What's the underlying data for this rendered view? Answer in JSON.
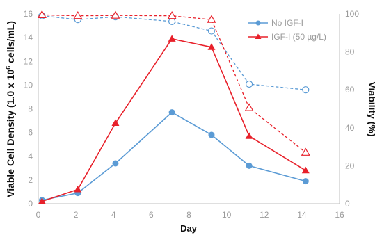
{
  "chart_data": {
    "type": "line",
    "xlabel": "Day",
    "ylabel": "Viable Cell Density (1.0 x 10",
    "ylabel_sup": "6",
    "ylabel_suffix": " cells/mL)",
    "y2label": "Viability (%)",
    "xlim": [
      0,
      16
    ],
    "ylim": [
      0,
      16
    ],
    "y2lim": [
      0,
      100
    ],
    "x_ticks": [
      "0",
      "2",
      "4",
      "6",
      "8",
      "10",
      "12",
      "14",
      "16"
    ],
    "y_ticks": [
      "0",
      "2",
      "4",
      "6",
      "8",
      "10",
      "12",
      "14",
      "16"
    ],
    "y2_ticks": [
      "0",
      "20",
      "40",
      "60",
      "80",
      "100"
    ],
    "grid": false,
    "legend_position": "top-right",
    "legend": [
      "No IGF-I",
      "IGF-I (50 µg/L)"
    ],
    "colors": {
      "no_igf": "#5b9bd5",
      "igf": "#e8202a",
      "axis": "#bfbfbf"
    },
    "series": [
      {
        "name": "No IGF-I",
        "axis": "left",
        "style": "solid",
        "marker": "circle-filled",
        "x": [
          0.2,
          2.1,
          4.1,
          7.1,
          9.2,
          11.2,
          14.2
        ],
        "y": [
          0.3,
          0.9,
          3.4,
          7.7,
          5.8,
          3.2,
          1.9
        ]
      },
      {
        "name": "IGF-I (50 µg/L)",
        "axis": "left",
        "style": "solid",
        "marker": "triangle-filled",
        "x": [
          0.2,
          2.1,
          4.1,
          7.1,
          9.2,
          11.2,
          14.2
        ],
        "y": [
          0.2,
          1.2,
          6.8,
          13.9,
          13.2,
          5.7,
          2.8
        ]
      },
      {
        "axis": "right",
        "style": "dashed",
        "marker": "circle-open",
        "color_key": "no_igf",
        "x": [
          0.2,
          2.1,
          4.1,
          7.1,
          9.2,
          11.2,
          14.2
        ],
        "y": [
          99,
          97,
          98.5,
          96,
          91,
          63,
          60
        ]
      },
      {
        "axis": "right",
        "style": "dashed",
        "marker": "triangle-open",
        "color_key": "igf",
        "x": [
          0.2,
          2.1,
          4.1,
          7.1,
          9.2,
          11.2,
          14.2
        ],
        "y": [
          99.5,
          99,
          99.2,
          99,
          97,
          50.5,
          27
        ]
      }
    ]
  }
}
